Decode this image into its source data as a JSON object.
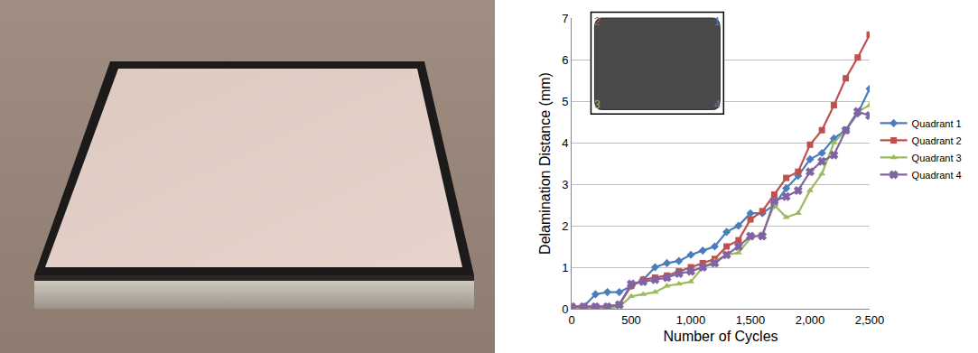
{
  "chart_data": {
    "type": "line",
    "x_label": "Number of Cycles",
    "y_label": "Delamination Distance (mm)",
    "x": [
      0,
      100,
      200,
      300,
      400,
      500,
      600,
      700,
      800,
      900,
      1000,
      1100,
      1200,
      1300,
      1400,
      1500,
      1600,
      1700,
      1800,
      1900,
      2000,
      2100,
      2200,
      2300,
      2400,
      2500
    ],
    "series": [
      {
        "name": "Quadrant 1",
        "color": "#4a7ebb",
        "marker": "diamond",
        "values": [
          0.05,
          0.05,
          0.35,
          0.4,
          0.4,
          0.55,
          0.7,
          1.0,
          1.1,
          1.15,
          1.3,
          1.4,
          1.5,
          1.85,
          2.0,
          2.3,
          2.3,
          2.5,
          2.9,
          3.2,
          3.6,
          3.75,
          4.1,
          4.3,
          4.7,
          5.3
        ]
      },
      {
        "name": "Quadrant 2",
        "color": "#c0504d",
        "marker": "square",
        "values": [
          0.05,
          0.05,
          0.05,
          0.05,
          0.1,
          0.55,
          0.7,
          0.75,
          0.8,
          0.9,
          1.0,
          1.1,
          1.2,
          1.5,
          1.65,
          2.15,
          2.35,
          2.75,
          3.15,
          3.3,
          3.95,
          4.3,
          4.9,
          5.55,
          6.05,
          6.6
        ]
      },
      {
        "name": "Quadrant 3",
        "color": "#9bbb59",
        "marker": "triangle-up",
        "values": [
          0.0,
          0.0,
          0.0,
          0.0,
          0.05,
          0.3,
          0.35,
          0.4,
          0.55,
          0.6,
          0.65,
          1.0,
          1.15,
          1.3,
          1.35,
          1.7,
          1.8,
          2.5,
          2.2,
          2.3,
          2.85,
          3.25,
          4.0,
          4.3,
          4.75,
          4.9
        ]
      },
      {
        "name": "Quadrant 4",
        "color": "#8064a2",
        "marker": "x",
        "values": [
          0.05,
          0.05,
          0.05,
          0.05,
          0.1,
          0.6,
          0.65,
          0.7,
          0.75,
          0.85,
          0.9,
          1.0,
          1.1,
          1.3,
          1.5,
          1.75,
          1.75,
          2.6,
          2.7,
          2.85,
          3.3,
          3.55,
          3.7,
          4.3,
          4.75,
          4.65
        ]
      }
    ],
    "xlim": [
      0,
      2500
    ],
    "xticks": [
      0,
      500,
      {
        "value": 1000,
        "label": "1,000"
      },
      {
        "value": 1500,
        "label": "1,500"
      },
      {
        "value": 2000,
        "label": "2,000"
      },
      {
        "value": 2500,
        "label": "2,500"
      }
    ],
    "ylim": [
      0,
      7
    ],
    "yticks": [
      0,
      1,
      2,
      3,
      4,
      5,
      6,
      7
    ],
    "grid": true,
    "legend": "right",
    "annotations": [
      "1",
      "2",
      "3",
      "4"
    ]
  }
}
